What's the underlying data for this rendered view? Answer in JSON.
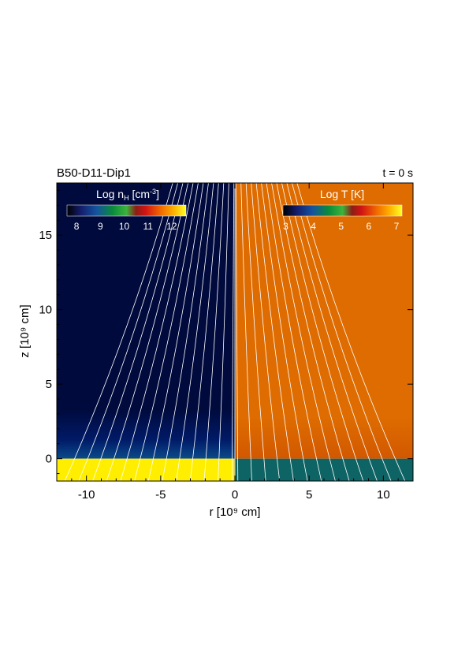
{
  "header": {
    "title": "B50-D11-Dip1",
    "time_label": "t = 0 s"
  },
  "chart_data": {
    "type": "heatmap",
    "xlabel": "r [10⁹ cm]",
    "ylabel": "z [10⁹ cm]",
    "xlim": [
      -12,
      12
    ],
    "ylim": [
      -1.5,
      18.5
    ],
    "x_ticks": [
      -10,
      -5,
      0,
      5,
      10
    ],
    "y_ticks": [
      0,
      5,
      10,
      15
    ],
    "x_tick_labels": [
      "-10",
      "-5",
      "0",
      "5",
      "10"
    ],
    "y_tick_labels": [
      "0",
      "5",
      "10",
      "15"
    ],
    "panels": [
      {
        "side": "left",
        "quantity": "Log n",
        "quantity_sub": "H",
        "unit": " [cm",
        "unit_sup": "-3",
        "unit_end": "]",
        "colorbar_ticks": [
          "8",
          "9",
          "10",
          "11",
          "12"
        ],
        "colorbar_range": [
          7.6,
          12.6
        ],
        "corona_value": 8,
        "chromosphere_value": 12.6,
        "transition_z": 0
      },
      {
        "side": "right",
        "quantity": "Log T [K]",
        "colorbar_ticks": [
          "3",
          "4",
          "5",
          "6",
          "7"
        ],
        "colorbar_range": [
          2.9,
          7.2
        ],
        "corona_value": 6.0,
        "chromosphere_value": 4.0,
        "transition_z": 0
      }
    ],
    "field_lines": "white dipole field lines"
  },
  "colors": {
    "density_background": "#000a3c",
    "density_chromosphere": "#ffee00",
    "temperature_background": "#de6c00",
    "temperature_chromosphere": "#0e6464",
    "field_line": "#ffffff",
    "axis": "#000000"
  }
}
